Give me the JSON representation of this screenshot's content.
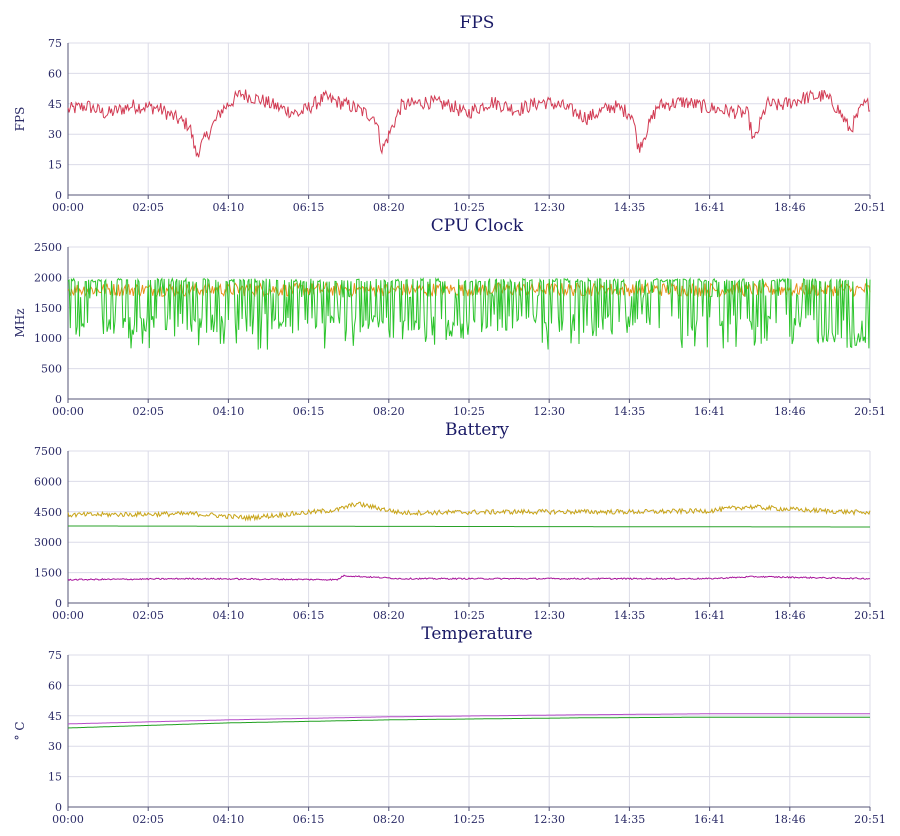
{
  "chart_data": [
    {
      "type": "line",
      "title": "FPS",
      "ylabel": "FPS",
      "xlabel": "",
      "x_ticks": [
        "00:00",
        "02:05",
        "04:10",
        "06:15",
        "08:20",
        "10:25",
        "12:30",
        "14:35",
        "16:41",
        "18:46",
        "20:51"
      ],
      "x_range_seconds": [
        0,
        1251
      ],
      "y_ticks": [
        0,
        15,
        30,
        45,
        60,
        75
      ],
      "ylim": [
        0,
        75
      ],
      "grid": true,
      "series": [
        {
          "color": "#d23c54",
          "points": [
            [
              0,
              42
            ],
            [
              30,
              44
            ],
            [
              60,
              40
            ],
            [
              100,
              44
            ],
            [
              140,
              43
            ],
            [
              190,
              34
            ],
            [
              200,
              20
            ],
            [
              240,
              42
            ],
            [
              270,
              50
            ],
            [
              300,
              47
            ],
            [
              330,
              43
            ],
            [
              360,
              40
            ],
            [
              400,
              48
            ],
            [
              440,
              44
            ],
            [
              480,
              38
            ],
            [
              490,
              22
            ],
            [
              520,
              44
            ],
            [
              560,
              46
            ],
            [
              600,
              44
            ],
            [
              620,
              40
            ],
            [
              660,
              46
            ],
            [
              700,
              42
            ],
            [
              740,
              46
            ],
            [
              770,
              44
            ],
            [
              810,
              38
            ],
            [
              850,
              44
            ],
            [
              880,
              40
            ],
            [
              890,
              23
            ],
            [
              920,
              44
            ],
            [
              960,
              46
            ],
            [
              1000,
              43
            ],
            [
              1040,
              41
            ],
            [
              1060,
              40
            ],
            [
              1070,
              26
            ],
            [
              1090,
              45
            ],
            [
              1110,
              44
            ],
            [
              1150,
              48
            ],
            [
              1180,
              49
            ],
            [
              1200,
              43
            ],
            [
              1220,
              32
            ],
            [
              1240,
              44
            ],
            [
              1251,
              45
            ]
          ],
          "noise": 7
        }
      ]
    },
    {
      "type": "line",
      "title": "CPU Clock",
      "ylabel": "MHz",
      "xlabel": "",
      "x_ticks": [
        "00:00",
        "02:05",
        "04:10",
        "06:15",
        "08:20",
        "10:25",
        "12:30",
        "14:35",
        "16:41",
        "18:46",
        "20:51"
      ],
      "x_range_seconds": [
        0,
        1251
      ],
      "y_ticks": [
        0,
        500,
        1000,
        1500,
        2000,
        2500
      ],
      "ylim": [
        0,
        2500
      ],
      "grid": true,
      "series": [
        {
          "color": "#e8901a",
          "points": [
            [
              0,
              1800
            ],
            [
              1251,
              1800
            ]
          ],
          "noise": 220,
          "min": 1650,
          "max": 2050
        },
        {
          "color": "#2cc42c",
          "points": [
            [
              0,
              1900
            ],
            [
              1251,
              1900
            ]
          ],
          "dips": true,
          "min": 700,
          "max": 1980
        }
      ]
    },
    {
      "type": "line",
      "title": "Battery",
      "ylabel": "",
      "xlabel": "",
      "x_ticks": [
        "00:00",
        "02:05",
        "04:10",
        "06:15",
        "08:20",
        "10:25",
        "12:30",
        "14:35",
        "16:41",
        "18:46",
        "20:51"
      ],
      "x_range_seconds": [
        0,
        1251
      ],
      "y_ticks": [
        0,
        1500,
        3000,
        4500,
        6000,
        7500
      ],
      "ylim": [
        0,
        7500
      ],
      "grid": true,
      "series": [
        {
          "color": "#c8a418",
          "points": [
            [
              0,
              4350
            ],
            [
              200,
              4400
            ],
            [
              280,
              4200
            ],
            [
              420,
              4600
            ],
            [
              450,
              4900
            ],
            [
              520,
              4450
            ],
            [
              700,
              4500
            ],
            [
              900,
              4500
            ],
            [
              1000,
              4550
            ],
            [
              1060,
              4750
            ],
            [
              1140,
              4600
            ],
            [
              1251,
              4450
            ]
          ],
          "noise": 240
        },
        {
          "color": "#2aa22a",
          "points": [
            [
              0,
              3800
            ],
            [
              1251,
              3750
            ]
          ],
          "noise": 0
        },
        {
          "color": "#a8159c",
          "points": [
            [
              0,
              1150
            ],
            [
              200,
              1200
            ],
            [
              420,
              1150
            ],
            [
              430,
              1350
            ],
            [
              520,
              1200
            ],
            [
              1000,
              1200
            ],
            [
              1070,
              1300
            ],
            [
              1251,
              1200
            ]
          ],
          "noise": 70
        }
      ]
    },
    {
      "type": "line",
      "title": "Temperature",
      "ylabel": "° C",
      "xlabel": "",
      "x_ticks": [
        "00:00",
        "02:05",
        "04:10",
        "06:15",
        "08:20",
        "10:25",
        "12:30",
        "14:35",
        "16:41",
        "18:46",
        "20:51"
      ],
      "x_range_seconds": [
        0,
        1251
      ],
      "y_ticks": [
        0,
        15,
        30,
        45,
        60,
        75
      ],
      "ylim": [
        0,
        75
      ],
      "grid": true,
      "series": [
        {
          "color": "#b54cc8",
          "points": [
            [
              0,
              41
            ],
            [
              250,
              43
            ],
            [
              500,
              44.5
            ],
            [
              800,
              45.5
            ],
            [
              1000,
              46
            ],
            [
              1251,
              46
            ]
          ],
          "noise": 0
        },
        {
          "color": "#20a020",
          "points": [
            [
              0,
              39
            ],
            [
              250,
              41.5
            ],
            [
              500,
              43
            ],
            [
              800,
              44
            ],
            [
              1000,
              44.3
            ],
            [
              1251,
              44.3
            ]
          ],
          "noise": 0
        }
      ]
    }
  ]
}
